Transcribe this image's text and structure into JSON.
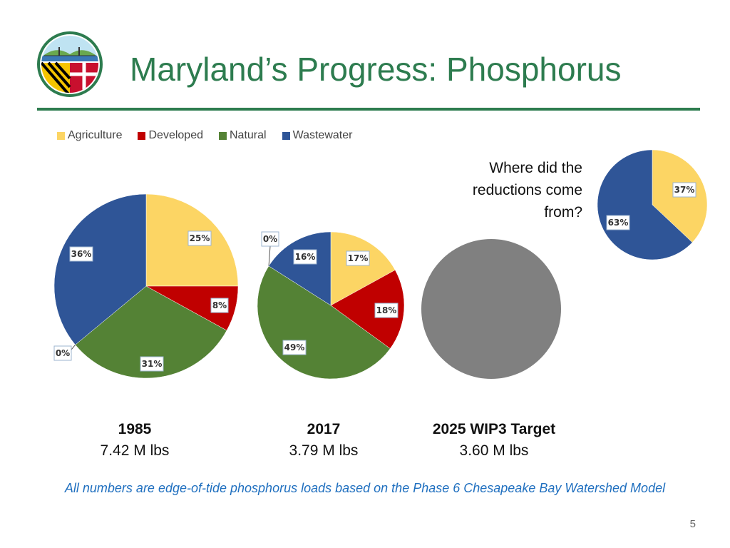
{
  "slide": {
    "title": "Maryland’s Progress:  Phosphorus",
    "question_lines": [
      "Where did the",
      "reductions come",
      "from?"
    ],
    "footnote": "All numbers are edge-of-tide phosphorus loads based on the Phase 6 Chesapeake Bay Watershed Model",
    "page_number": "5"
  },
  "colors": {
    "Agriculture": "#fcd564",
    "Developed": "#c00000",
    "Natural": "#548235",
    "Wastewater": "#2f5597",
    "Unknown": "#808080",
    "accent": "#2d7c4f"
  },
  "legend": [
    "Agriculture",
    "Developed",
    "Natural",
    "Wastewater"
  ],
  "captions": [
    {
      "year": "1985",
      "load": "7.42 M lbs"
    },
    {
      "year": "2017",
      "load": "3.79 M lbs"
    },
    {
      "year": "2025 WIP3 Target",
      "load": "3.60 M lbs"
    }
  ],
  "chart_data": [
    {
      "type": "pie",
      "year": "1985",
      "total": "7.42 M lbs",
      "slices": [
        {
          "category": "Agriculture",
          "value": 25,
          "label": "25%"
        },
        {
          "category": "Developed",
          "value": 8,
          "label": "8%"
        },
        {
          "category": "Natural",
          "value": 31,
          "label": "31%"
        },
        {
          "category": "Unknown",
          "value": 0,
          "label": "0%"
        },
        {
          "category": "Wastewater",
          "value": 36,
          "label": "36%"
        }
      ]
    },
    {
      "type": "pie",
      "year": "2017",
      "total": "3.79 M lbs",
      "slices": [
        {
          "category": "Agriculture",
          "value": 17,
          "label": "17%"
        },
        {
          "category": "Developed",
          "value": 18,
          "label": "18%"
        },
        {
          "category": "Natural",
          "value": 49,
          "label": "49%"
        },
        {
          "category": "Unknown",
          "value": 0,
          "label": "0%"
        },
        {
          "category": "Wastewater",
          "value": 16,
          "label": "16%"
        }
      ]
    },
    {
      "type": "pie",
      "year": "2025 WIP3 Target",
      "total": "3.60 M lbs",
      "slices": [
        {
          "category": "Unknown",
          "value": 100,
          "label": ""
        }
      ]
    },
    {
      "type": "pie",
      "title": "Where did the reductions come from?",
      "slices": [
        {
          "category": "Agriculture",
          "value": 37,
          "label": "37%"
        },
        {
          "category": "Wastewater",
          "value": 63,
          "label": "63%"
        }
      ]
    }
  ]
}
